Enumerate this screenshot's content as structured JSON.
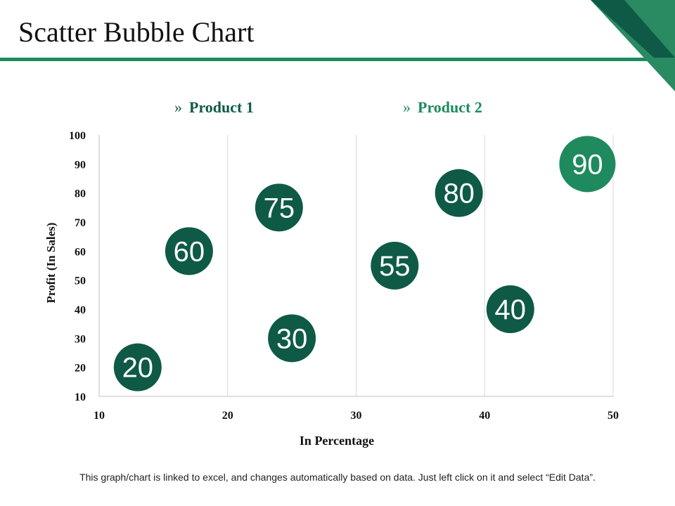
{
  "slide": {
    "title": "Scatter Bubble Chart",
    "footnote": "This graph/chart is linked to excel, and changes automatically based on data. Just left click on it and select “Edit Data”."
  },
  "colors": {
    "accent": "#1e8a5e",
    "accent_dark": "#0e5a46",
    "bubble": "#0e5a46",
    "gridline": "#d9d9d9",
    "axis": "#bfbfbf",
    "text": "#111111"
  },
  "legend": {
    "marker": "»",
    "items": [
      {
        "label": "Product 1",
        "color": "#0e5a46"
      },
      {
        "label": "Product 2",
        "color": "#1e8a5e"
      }
    ]
  },
  "chart_data": {
    "type": "scatter",
    "title": "",
    "xlabel": "In Percentage",
    "ylabel": "Profit  (In Sales)",
    "xlim": [
      10,
      50
    ],
    "ylim": [
      10,
      100
    ],
    "x_ticks": [
      10,
      20,
      30,
      40,
      50
    ],
    "y_ticks": [
      10,
      20,
      30,
      40,
      50,
      60,
      70,
      80,
      90,
      100
    ],
    "grid": "vertical",
    "series": [
      {
        "name": "Product 1",
        "color": "#0e5a46",
        "points": [
          {
            "x": 13,
            "y": 20,
            "label": "20"
          },
          {
            "x": 17,
            "y": 60,
            "label": "60"
          },
          {
            "x": 24,
            "y": 75,
            "label": "75"
          },
          {
            "x": 25,
            "y": 30,
            "label": "30"
          },
          {
            "x": 33,
            "y": 55,
            "label": "55"
          },
          {
            "x": 38,
            "y": 80,
            "label": "80"
          },
          {
            "x": 42,
            "y": 40,
            "label": "40"
          }
        ]
      },
      {
        "name": "Product 2",
        "color": "#1e8a5e",
        "points": [
          {
            "x": 48,
            "y": 90,
            "label": "90"
          }
        ]
      }
    ]
  }
}
